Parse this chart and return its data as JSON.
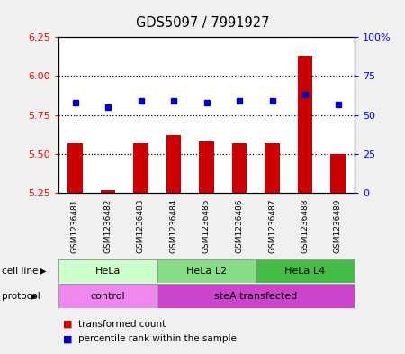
{
  "title": "GDS5097 / 7991927",
  "samples": [
    "GSM1236481",
    "GSM1236482",
    "GSM1236483",
    "GSM1236484",
    "GSM1236485",
    "GSM1236486",
    "GSM1236487",
    "GSM1236488",
    "GSM1236489"
  ],
  "bar_values": [
    5.57,
    5.27,
    5.57,
    5.62,
    5.58,
    5.57,
    5.57,
    6.13,
    5.5
  ],
  "bar_base": 5.25,
  "dot_values": [
    58,
    55,
    59,
    59,
    58,
    59,
    59,
    63,
    57
  ],
  "ylim_left": [
    5.25,
    6.25
  ],
  "ylim_right": [
    0,
    100
  ],
  "yticks_left": [
    5.25,
    5.5,
    5.75,
    6.0,
    6.25
  ],
  "yticks_right": [
    0,
    25,
    50,
    75,
    100
  ],
  "ytick_labels_right": [
    "0",
    "25",
    "50",
    "75",
    "100%"
  ],
  "hline_values": [
    5.5,
    5.75,
    6.0
  ],
  "bar_color": "#cc0000",
  "dot_color": "#0000cc",
  "cell_line_groups": [
    {
      "label": "HeLa",
      "start": 0,
      "end": 3,
      "color": "#ccffcc"
    },
    {
      "label": "HeLa L2",
      "start": 3,
      "end": 6,
      "color": "#88dd88"
    },
    {
      "label": "HeLa L4",
      "start": 6,
      "end": 9,
      "color": "#44bb44"
    }
  ],
  "protocol_groups": [
    {
      "label": "control",
      "start": 0,
      "end": 3,
      "color": "#ee88ee"
    },
    {
      "label": "steA transfected",
      "start": 3,
      "end": 9,
      "color": "#cc44cc"
    }
  ],
  "legend_bar_label": "transformed count",
  "legend_dot_label": "percentile rank within the sample",
  "cell_line_label": "cell line",
  "protocol_label": "protocol",
  "sample_bg_color": "#cccccc",
  "fig_bg_color": "#f0f0f0"
}
